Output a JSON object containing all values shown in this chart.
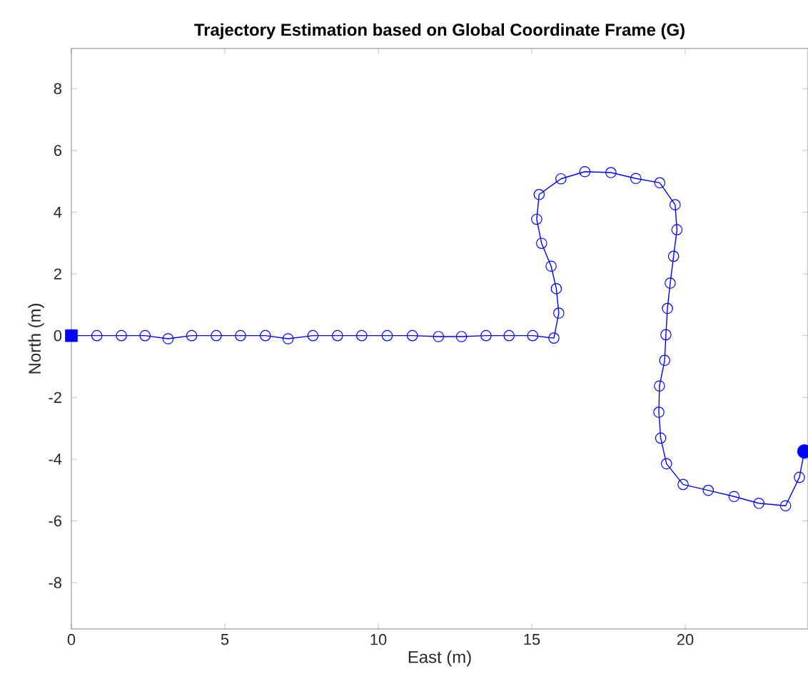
{
  "chart_data": {
    "type": "line",
    "title": "Trajectory Estimation based on Global Coordinate Frame (G)",
    "xlabel": "East (m)",
    "ylabel": "North (m)",
    "xlim": [
      0,
      24
    ],
    "ylim": [
      -9.5,
      9.3
    ],
    "xticks": [
      0,
      5,
      10,
      15,
      20
    ],
    "yticks": [
      -8,
      -6,
      -4,
      -2,
      0,
      2,
      4,
      6,
      8
    ],
    "grid": false,
    "line_style": "solid",
    "series": [
      {
        "marker": "circle",
        "color": "#0000ff",
        "x": [
          0,
          0.83,
          1.63,
          2.4,
          3.15,
          3.92,
          4.72,
          5.51,
          6.32,
          7.06,
          7.87,
          8.67,
          9.46,
          10.29,
          11.11,
          11.96,
          12.71,
          13.51,
          14.26,
          15.03,
          15.72,
          15.88,
          15.8,
          15.63,
          15.32,
          15.16,
          15.24,
          15.95,
          16.73,
          17.58,
          18.39,
          19.17,
          19.67,
          19.73,
          19.62,
          19.51,
          19.42,
          19.37,
          19.33,
          19.16,
          19.14,
          19.2,
          19.39,
          19.93,
          20.75,
          21.59,
          22.4,
          23.27,
          23.72,
          23.88
        ],
        "values": [
          0,
          0,
          0,
          0,
          -0.1,
          0,
          0,
          0,
          0,
          -0.1,
          0,
          0,
          0,
          0,
          0,
          -0.03,
          -0.03,
          0,
          0,
          0,
          -0.08,
          0.73,
          1.52,
          2.25,
          2.99,
          3.77,
          4.57,
          5.08,
          5.31,
          5.28,
          5.09,
          4.95,
          4.24,
          3.43,
          2.57,
          1.7,
          0.88,
          0.03,
          -0.8,
          -1.63,
          -2.48,
          -3.32,
          -4.15,
          -4.82,
          -5.01,
          -5.21,
          -5.43,
          -5.51,
          -4.59,
          -3.75
        ]
      },
      {
        "type": "scatter",
        "marker": "square",
        "color": "#0000ff",
        "x": [
          0
        ],
        "values": [
          0
        ]
      },
      {
        "type": "scatter",
        "marker": "circle",
        "color": "#0000ff",
        "x": [
          23.88
        ],
        "values": [
          -3.75
        ]
      }
    ]
  }
}
